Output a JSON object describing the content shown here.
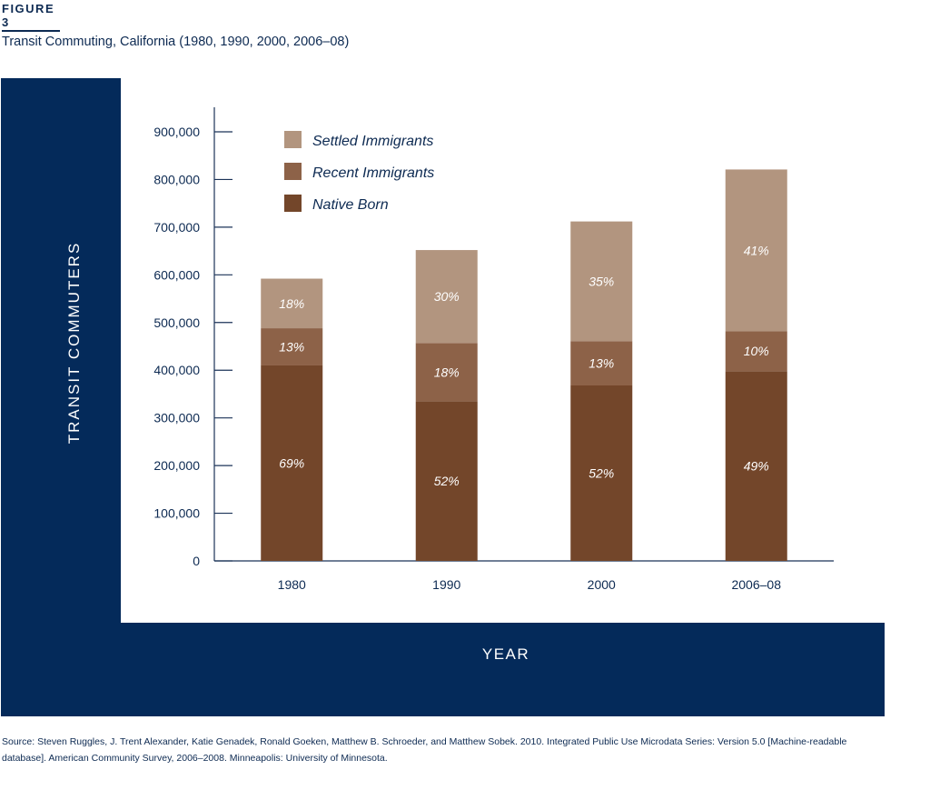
{
  "figure_label": "FIGURE 3",
  "figure_title": "Transit Commuting, California (1980, 1990, 2000, 2006–08)",
  "source": "Source: Steven Ruggles, J. Trent Alexander, Katie Genadek, Ronald Goeken, Matthew B. Schroeder, and Matthew Sobek. 2010. Integrated Public Use Microdata Series: Version 5.0 [Machine-readable database]. American Community Survey, 2006–2008. Minneapolis: University of Minnesota.",
  "colors": {
    "panel": "#042a5a",
    "native_born": "#73462a",
    "recent_immigrants": "#8d6248",
    "settled_immigrants": "#b2957f",
    "text": "#0d2a52"
  },
  "chart_data": {
    "type": "bar",
    "stacked": true,
    "xlabel": "YEAR",
    "ylabel": "TRANSIT COMMUTERS",
    "ylim": [
      0,
      900000
    ],
    "yticks": [
      0,
      100000,
      200000,
      300000,
      400000,
      500000,
      600000,
      700000,
      800000,
      900000
    ],
    "ytick_labels": [
      "0",
      "100,000",
      "200,000",
      "300,000",
      "400,000",
      "500,000",
      "600,000",
      "700,000",
      "800,000",
      "900,000"
    ],
    "categories": [
      "1980",
      "1990",
      "2000",
      "2006–08"
    ],
    "legend_position": "top-left",
    "series": [
      {
        "name": "Native Born",
        "color": "#73462a",
        "values": [
          410000,
          335000,
          368000,
          398000
        ],
        "labels": [
          "69%",
          "52%",
          "52%",
          "49%"
        ]
      },
      {
        "name": "Recent Immigrants",
        "color": "#8d6248",
        "values": [
          78000,
          122000,
          93000,
          84000
        ],
        "labels": [
          "13%",
          "18%",
          "13%",
          "10%"
        ]
      },
      {
        "name": "Settled Immigrants",
        "color": "#b2957f",
        "values": [
          104000,
          195000,
          251000,
          339000
        ],
        "labels": [
          "18%",
          "30%",
          "35%",
          "41%"
        ]
      }
    ],
    "legend_order": [
      "Settled Immigrants",
      "Recent Immigrants",
      "Native Born"
    ]
  }
}
